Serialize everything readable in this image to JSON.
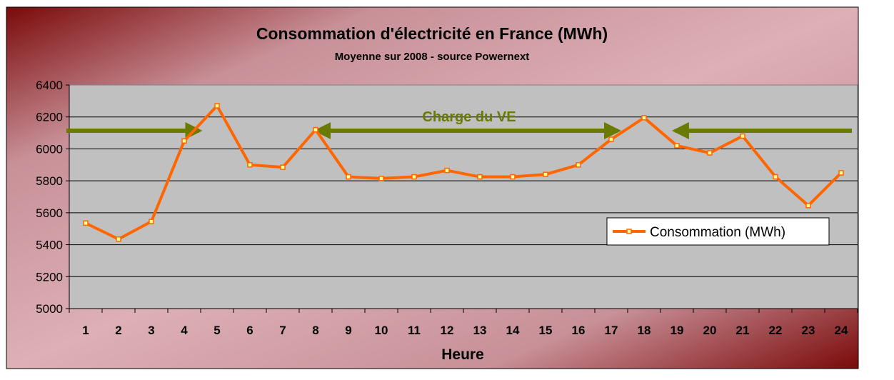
{
  "chart_data": {
    "type": "line",
    "title": "Consommation d'électricité en France (MWh)",
    "subtitle": "Moyenne sur 2008 - source Powernext",
    "xlabel": "Heure",
    "ylabel": "",
    "categories": [
      "1",
      "2",
      "3",
      "4",
      "5",
      "6",
      "7",
      "8",
      "9",
      "10",
      "11",
      "12",
      "13",
      "14",
      "15",
      "16",
      "17",
      "18",
      "19",
      "20",
      "21",
      "22",
      "23",
      "24"
    ],
    "series": [
      {
        "name": "Consommation (MWh)",
        "color": "#FF6600",
        "values": [
          5535,
          5435,
          5545,
          6050,
          6270,
          5900,
          5885,
          6120,
          5825,
          5815,
          5825,
          5865,
          5825,
          5825,
          5840,
          5900,
          6060,
          6195,
          6020,
          5975,
          6080,
          5825,
          5645,
          5850
        ]
      }
    ],
    "ylim": [
      5000,
      6400
    ],
    "yticks": [
      5000,
      5200,
      5400,
      5600,
      5800,
      6000,
      6200,
      6400
    ],
    "grid": true,
    "legend": "right",
    "annotation": {
      "text": "Charge du VE",
      "color": "#6B7A00",
      "arrows": [
        {
          "from": "start",
          "to": "4.5",
          "direction": "right"
        },
        {
          "from": "8",
          "to": "17",
          "direction": "both"
        },
        {
          "from": "19",
          "to": "end",
          "direction": "left"
        }
      ]
    },
    "colors": {
      "plot_background": "#C0C0C0",
      "frame_dark": "#8B1010",
      "frame_light": "#D8A8AE"
    }
  }
}
